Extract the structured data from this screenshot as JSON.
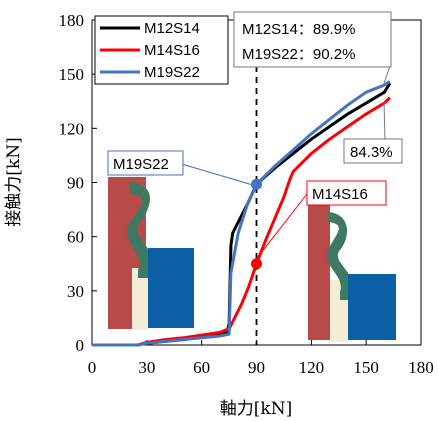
{
  "chart_data": {
    "type": "line",
    "title": "",
    "xlabel": "軸力[kN]",
    "ylabel": "接触力[kN]",
    "xlim": [
      0,
      180
    ],
    "ylim": [
      0,
      180
    ],
    "xticks": [
      "0",
      "30",
      "60",
      "90",
      "120",
      "150",
      "180"
    ],
    "yticks": [
      "0",
      "30",
      "60",
      "90",
      "120",
      "150",
      "180"
    ],
    "grid": false,
    "legend_position": "top-left",
    "series": [
      {
        "name": "M12S14",
        "color": "#000000",
        "x": [
          0,
          25,
          30,
          40,
          50,
          60,
          70,
          74,
          75,
          76,
          77,
          80,
          85,
          90,
          100,
          110,
          120,
          130,
          140,
          150,
          160,
          163
        ],
        "y": [
          0,
          0,
          1,
          2,
          3,
          4.5,
          6,
          7,
          12,
          55,
          62,
          68,
          78,
          89,
          98,
          106,
          114,
          121,
          128,
          134,
          140,
          145
        ]
      },
      {
        "name": "M14S16",
        "color": "#ff0000",
        "x": [
          0,
          25,
          30,
          40,
          50,
          60,
          70,
          75,
          78,
          82,
          86,
          90,
          95,
          100,
          105,
          108,
          110,
          120,
          130,
          140,
          150,
          160,
          163
        ],
        "y": [
          0,
          0,
          1.5,
          3,
          4,
          5.5,
          7,
          9,
          15,
          23,
          33,
          45,
          58,
          70,
          82,
          91,
          96,
          106,
          114,
          121,
          128,
          134,
          137
        ]
      },
      {
        "name": "M19S22",
        "color": "#4472c4",
        "x": [
          0,
          25,
          30,
          40,
          50,
          60,
          70,
          75,
          76,
          80,
          85,
          90,
          100,
          110,
          120,
          130,
          140,
          150,
          160,
          163
        ],
        "y": [
          0,
          0,
          1,
          2,
          3,
          4,
          5,
          6,
          40,
          62,
          78,
          89,
          99,
          108,
          117,
          125,
          133,
          140,
          144,
          146
        ]
      }
    ],
    "markers": [
      {
        "series": "M19S22",
        "x": 90,
        "y": 89,
        "color": "#4472c4"
      },
      {
        "series": "M14S16",
        "x": 90,
        "y": 45,
        "color": "#ff0000"
      }
    ],
    "reference_line": {
      "x": 90,
      "style": "dashed"
    },
    "annotations": {
      "top_box": [
        "M12S14：89.9%",
        "M19S22：90.2%"
      ],
      "percent_label": "84.3%",
      "label_m19": "M19S22",
      "label_m14": "M14S16"
    }
  }
}
